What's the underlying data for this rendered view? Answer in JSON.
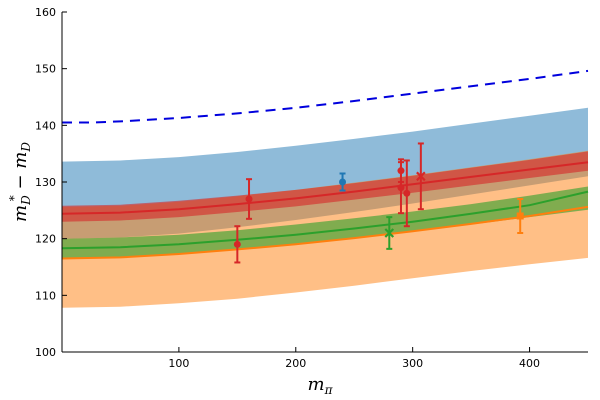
{
  "chart_data": {
    "type": "line",
    "xlim": [
      0,
      450
    ],
    "ylim": [
      100,
      160
    ],
    "x_ticks": [
      100,
      200,
      300,
      400
    ],
    "y_ticks": [
      100,
      110,
      120,
      130,
      140,
      150,
      160
    ],
    "grid": false,
    "xlabel": {
      "base": "m",
      "sub": "π"
    },
    "ylabel": {
      "base": "m",
      "sub1": "D",
      "sup": "*",
      "mid": " − m",
      "sub2": "D"
    },
    "bands": [
      {
        "color": "#1f77b4",
        "opacity": 0.5,
        "x": [
          0,
          50,
          100,
          150,
          200,
          250,
          300,
          350,
          400,
          450
        ],
        "lower": [
          120.0,
          120.2,
          120.9,
          122.0,
          123.3,
          124.7,
          126.2,
          127.8,
          129.4,
          131.0
        ],
        "upper": [
          133.6,
          133.8,
          134.4,
          135.3,
          136.4,
          137.6,
          138.9,
          140.3,
          141.7,
          143.1
        ]
      },
      {
        "color": "#ff7f0e",
        "opacity": 0.5,
        "x": [
          0,
          50,
          100,
          150,
          200,
          250,
          300,
          350,
          400,
          450
        ],
        "lower": [
          107.8,
          108.0,
          108.6,
          109.4,
          110.5,
          111.7,
          113.0,
          114.3,
          115.5,
          116.6
        ],
        "upper": [
          125.6,
          125.8,
          126.5,
          127.5,
          128.6,
          129.9,
          131.2,
          132.6,
          134.0,
          135.5
        ]
      },
      {
        "color": "#d62728",
        "opacity": 0.6,
        "x": [
          0,
          50,
          100,
          150,
          200,
          250,
          300,
          350,
          400,
          450
        ],
        "lower": [
          123.0,
          123.2,
          123.8,
          124.7,
          125.7,
          126.9,
          128.1,
          129.4,
          130.7,
          132.0
        ],
        "upper": [
          125.8,
          126.0,
          126.7,
          127.6,
          128.6,
          129.8,
          131.1,
          132.5,
          133.9,
          135.4
        ]
      },
      {
        "color": "#2ca02c",
        "opacity": 0.6,
        "x": [
          0,
          50,
          100,
          150,
          200,
          250,
          300,
          350,
          400,
          450
        ],
        "lower": [
          116.6,
          116.8,
          117.3,
          118.1,
          119.0,
          120.1,
          121.3,
          122.5,
          123.8,
          125.1
        ],
        "upper": [
          120.0,
          120.2,
          120.7,
          121.5,
          122.5,
          123.6,
          124.8,
          126.1,
          127.6,
          129.2
        ]
      }
    ],
    "lines": [
      {
        "color": "#d62728",
        "width": 2,
        "dash": "",
        "x": [
          0,
          50,
          100,
          150,
          200,
          250,
          300,
          350,
          400,
          450
        ],
        "y": [
          124.4,
          124.6,
          125.2,
          126.1,
          127.1,
          128.3,
          129.6,
          130.9,
          132.2,
          133.5
        ]
      },
      {
        "color": "#2ca02c",
        "width": 2,
        "dash": "",
        "x": [
          0,
          50,
          100,
          150,
          200,
          250,
          300,
          350,
          400,
          450
        ],
        "y": [
          118.3,
          118.5,
          119.0,
          119.8,
          120.7,
          121.8,
          123.0,
          124.4,
          125.9,
          128.3
        ]
      },
      {
        "color": "#ff7f0e",
        "width": 2,
        "dash": "",
        "x": [
          0,
          50,
          100,
          150,
          200,
          250,
          300,
          350,
          400,
          450
        ],
        "y": [
          116.5,
          116.7,
          117.3,
          118.1,
          119.0,
          120.1,
          121.3,
          122.6,
          124.0,
          125.6
        ]
      },
      {
        "color": "#0000dd",
        "width": 2,
        "dash": "10,7",
        "x": [
          0,
          25,
          50,
          100,
          150,
          200,
          250,
          300,
          350,
          400,
          450
        ],
        "y": [
          140.5,
          140.5,
          140.7,
          141.3,
          142.1,
          143.1,
          144.3,
          145.6,
          146.9,
          148.2,
          149.6
        ]
      }
    ],
    "points": [
      {
        "x": 240,
        "y": 130.0,
        "err": 1.5,
        "color": "#1f77b4",
        "marker": "circle"
      },
      {
        "x": 150,
        "y": 119.0,
        "err": 3.2,
        "color": "#d62728",
        "marker": "circle"
      },
      {
        "x": 160,
        "y": 127.0,
        "err": 3.5,
        "color": "#d62728",
        "marker": "circle"
      },
      {
        "x": 290,
        "y": 132.0,
        "err": 2.0,
        "color": "#d62728",
        "marker": "circle"
      },
      {
        "x": 290,
        "y": 129.0,
        "err": 4.5,
        "color": "#d62728",
        "marker": "circle"
      },
      {
        "x": 295,
        "y": 128.0,
        "err": 5.8,
        "color": "#d62728",
        "marker": "circle"
      },
      {
        "x": 307,
        "y": 131.0,
        "err": 5.8,
        "color": "#d62728",
        "marker": "cross"
      },
      {
        "x": 280,
        "y": 121.0,
        "err": 2.8,
        "color": "#2ca02c",
        "marker": "cross"
      },
      {
        "x": 392,
        "y": 124.0,
        "err": 3.0,
        "color": "#ff7f0e",
        "marker": "square"
      }
    ]
  }
}
